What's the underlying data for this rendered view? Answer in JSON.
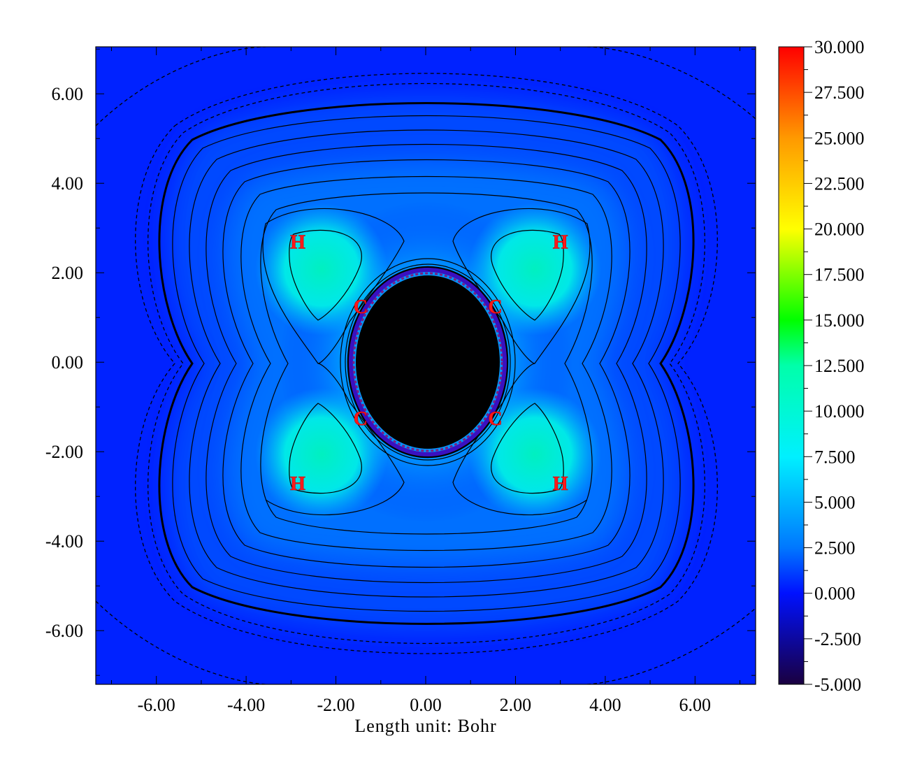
{
  "chart_data": {
    "type": "heatmap",
    "title": "",
    "xlabel": "Length unit: Bohr",
    "ylabel": "",
    "xlim": [
      -7.35,
      7.35
    ],
    "ylim": [
      -7.2,
      7.05
    ],
    "x_ticks": [
      "-6.00",
      "-4.00",
      "-2.00",
      "0.00",
      "2.00",
      "4.00",
      "6.00"
    ],
    "x_tick_values": [
      -6,
      -4,
      -2,
      0,
      2,
      4,
      6
    ],
    "y_ticks": [
      "6.00",
      "4.00",
      "2.00",
      "0.00",
      "-2.00",
      "-4.00",
      "-6.00"
    ],
    "y_tick_values": [
      6,
      4,
      2,
      0,
      -2,
      -4,
      -6
    ],
    "colorbar": {
      "min": -5.0,
      "max": 30.0,
      "labels": [
        "30.000",
        "27.500",
        "25.000",
        "22.500",
        "20.000",
        "17.500",
        "15.000",
        "12.500",
        "10.000",
        "7.500",
        "5.000",
        "2.500",
        "0.000",
        "-2.500",
        "-5.000"
      ],
      "values": [
        30,
        27.5,
        25,
        22.5,
        20,
        17.5,
        15,
        12.5,
        10,
        7.5,
        5,
        2.5,
        0,
        -2.5,
        -5
      ]
    },
    "colors": {
      "background_field": "#0022ff",
      "low": "#1a0040",
      "mid": "#00e5ff",
      "high": "#ff0000",
      "core": "#000000",
      "atom_label": "#ff1a1a"
    },
    "atoms": [
      {
        "label": "H",
        "x": -2.85,
        "y": 2.7
      },
      {
        "label": "H",
        "x": 3.0,
        "y": 2.7
      },
      {
        "label": "C",
        "x": -1.45,
        "y": 1.25
      },
      {
        "label": "C",
        "x": 1.55,
        "y": 1.25
      },
      {
        "label": "C",
        "x": -1.45,
        "y": -1.25
      },
      {
        "label": "C",
        "x": 1.55,
        "y": -1.25
      },
      {
        "label": "H",
        "x": -2.85,
        "y": -2.7
      },
      {
        "label": "H",
        "x": 3.0,
        "y": -2.7
      }
    ],
    "grid": false,
    "legend": "colorbar-right"
  }
}
